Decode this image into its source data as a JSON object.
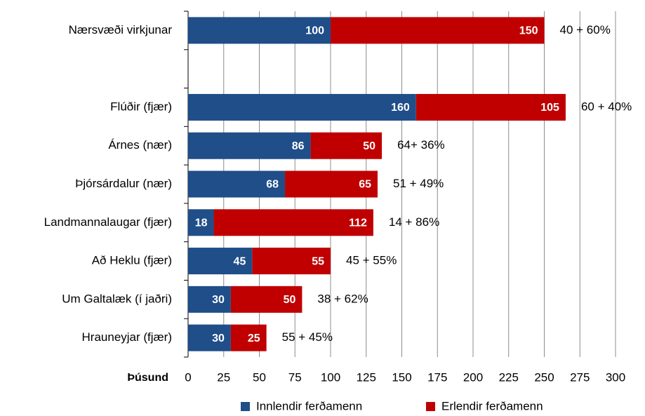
{
  "chart_data": {
    "type": "stacked-barh",
    "categories": [
      "Nærsvæði virkjunar",
      null,
      "Flúðir (fjær)",
      "Árnes (nær)",
      "Þjórsárdalur (nær)",
      "Landmannalaugar (fjær)",
      "Að Heklu (fjær)",
      "Um Galtalæk (í jaðri)",
      "Hrauneyjar (fjær)"
    ],
    "series": [
      {
        "name": "Innlendir ferðamenn",
        "color": "#1f4e89",
        "values": [
          100,
          null,
          160,
          86,
          68,
          18,
          45,
          30,
          30
        ]
      },
      {
        "name": "Erlendir ferðamenn",
        "color": "#c00000",
        "values": [
          150,
          null,
          105,
          50,
          65,
          112,
          55,
          50,
          25
        ]
      }
    ],
    "annotations": [
      "40 + 60%",
      null,
      "60 + 40%",
      "64+ 36%",
      "51 + 49%",
      "14 + 86%",
      "45 + 55%",
      "38 + 62%",
      "55 + 45%"
    ],
    "xlabel": "Þúsund",
    "xlim": [
      0,
      300
    ],
    "xticks": [
      0,
      25,
      50,
      75,
      100,
      125,
      150,
      175,
      200,
      225,
      250,
      275,
      300
    ],
    "grid": true,
    "legend": "bottom"
  }
}
